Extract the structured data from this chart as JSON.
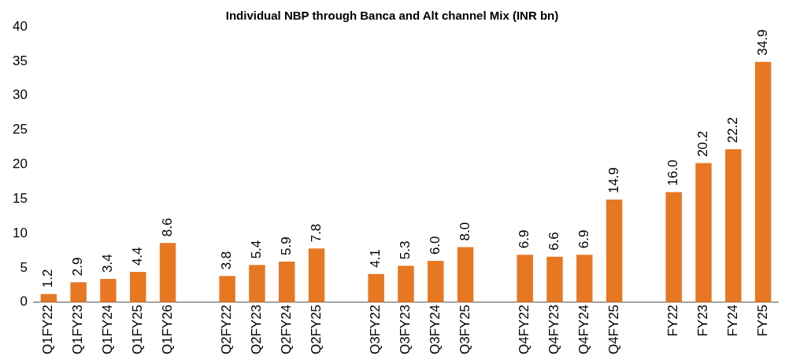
{
  "chart_data": {
    "type": "bar",
    "title": "Individual NBP through Banca and Alt channel Mix (INR bn)",
    "categories": [
      "Q1FY22",
      "Q1FY23",
      "Q1FY24",
      "Q1FY25",
      "Q1FY26",
      null,
      "Q2FY22",
      "Q2FY23",
      "Q2FY24",
      "Q2FY25",
      null,
      "Q3FY22",
      "Q3FY23",
      "Q3FY24",
      "Q3FY25",
      null,
      "Q4FY22",
      "Q4FY23",
      "Q4FY24",
      "Q4FY25",
      null,
      "FY22",
      "FY23",
      "FY24",
      "FY25"
    ],
    "values": [
      1.2,
      2.9,
      3.4,
      4.4,
      8.6,
      null,
      3.8,
      5.4,
      5.9,
      7.8,
      null,
      4.1,
      5.3,
      6.0,
      8.0,
      null,
      6.9,
      6.6,
      6.9,
      14.9,
      null,
      16.0,
      20.2,
      22.2,
      34.9
    ],
    "value_labels": [
      "1.2",
      "2.9",
      "3.4",
      "4.4",
      "8.6",
      null,
      "3.8",
      "5.4",
      "5.9",
      "7.8",
      null,
      "4.1",
      "5.3",
      "6.0",
      "8.0",
      null,
      "6.9",
      "6.6",
      "6.9",
      "14.9",
      null,
      "16.0",
      "20.2",
      "22.2",
      "34.9"
    ],
    "color": "#e87722",
    "ylim": [
      0,
      40
    ],
    "yticks": [
      0,
      5,
      10,
      15,
      20,
      25,
      30,
      35,
      40
    ],
    "grid": false,
    "legend": false
  }
}
